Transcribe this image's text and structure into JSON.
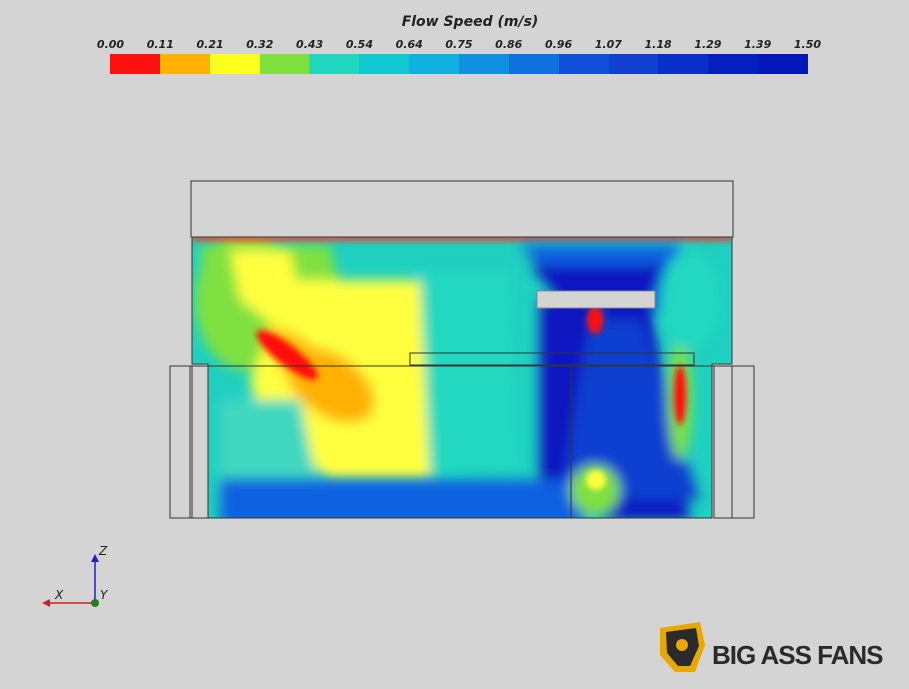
{
  "colorbar": {
    "title": "Flow Speed (m/s)",
    "ticks": [
      "0.00",
      "0.11",
      "0.21",
      "0.32",
      "0.43",
      "0.54",
      "0.64",
      "0.75",
      "0.86",
      "0.96",
      "1.07",
      "1.18",
      "1.29",
      "1.39",
      "1.50"
    ],
    "colors": [
      "#ff1010",
      "#ffb000",
      "#ffff20",
      "#80e040",
      "#20d8c0",
      "#10c8d0",
      "#10b0e0",
      "#1090e0",
      "#1070e0",
      "#1050d8",
      "#1040d0",
      "#0830c8",
      "#0020c0",
      "#0018b8"
    ]
  },
  "axes": {
    "x": "X",
    "y": "Y",
    "z": "Z"
  },
  "brand": {
    "name": "BIG ASS FANS",
    "accent": "#e8a800"
  }
}
